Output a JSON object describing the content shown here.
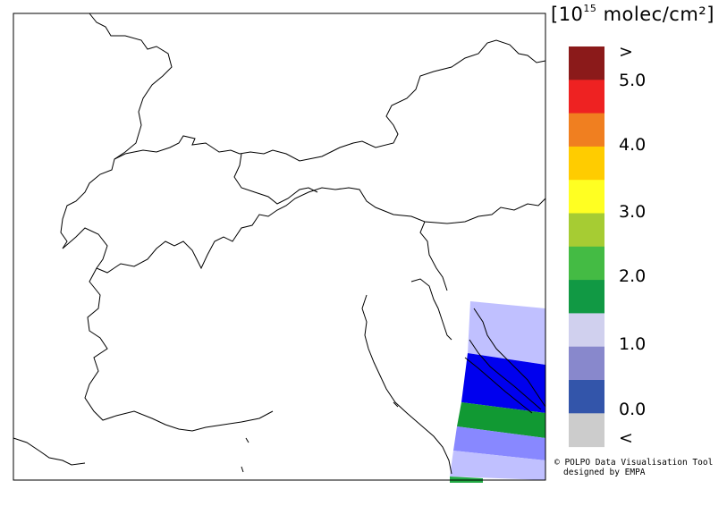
{
  "legend": {
    "unit_prefix": "[10",
    "unit_exp": "15",
    "unit_suffix": " molec/cm²]",
    "ticks": [
      ">",
      "5.0",
      "4.0",
      "3.0",
      "2.0",
      "1.0",
      "0.0",
      "<"
    ],
    "colors": [
      "#8b1a1a",
      "#ee2222",
      "#f07f20",
      "#ffcc00",
      "#ffff22",
      "#a6cc33",
      "#44bb44",
      "#119944",
      "#d0d0ee",
      "#8888cc",
      "#3355aa",
      "#cccccc"
    ]
  },
  "swaths": {
    "colors": [
      "#c0c0ff",
      "#0000ee",
      "#119933",
      "#8888ff",
      "#c0c0ff",
      "#22aa44"
    ]
  },
  "credit": {
    "line1": "© POLPO Data Visualisation Tool",
    "line2": "designed by EMPA"
  }
}
